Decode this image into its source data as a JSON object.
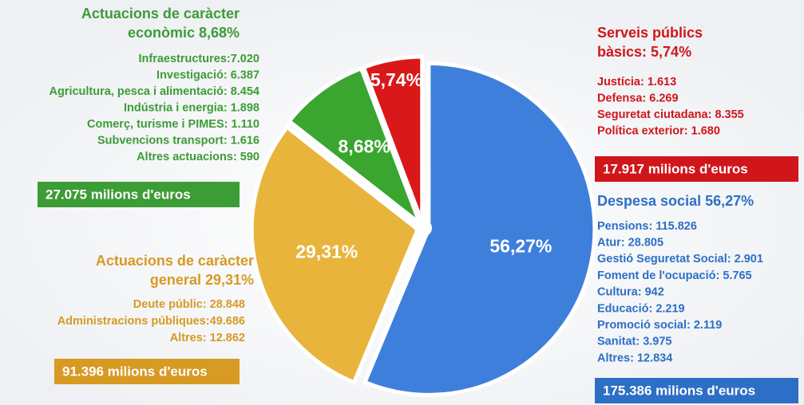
{
  "chart_data": {
    "type": "pie",
    "values": [
      56.27,
      29.31,
      8.68,
      5.74
    ],
    "value_labels": [
      "56,27%",
      "29,31%",
      "8,68%",
      "5,74%"
    ],
    "colors": [
      "#3f7fdc",
      "#e8b43c",
      "#3aa52f",
      "#d9181a"
    ]
  },
  "panels": [
    {
      "title": [
        "Despesa social 56,27%"
      ],
      "color": "#2d6fc6",
      "side": "right",
      "items": [
        "Pensions: 115.826",
        "Atur: 28.805",
        "Gestió Seguretat Social: 2.901",
        "Foment de l'ocupació: 5.765",
        "Cultura: 942",
        "Educació: 2.219",
        "Promoció social: 2.119",
        "Sanitat: 3.975",
        "Altres: 12.834"
      ],
      "total": "175.386 milions d'euros"
    },
    {
      "title": [
        "Actuacions de caràcter",
        "general  29,31%"
      ],
      "color": "#d79a22",
      "side": "left",
      "items": [
        "Deute públic: 28.848",
        "Administracions públiques:49.686",
        "Altres: 12.862"
      ],
      "total": "91.396 milions d'euros"
    },
    {
      "title": [
        "Actuacions de caràcter",
        "econòmic 8,68%"
      ],
      "color": "#3c9c35",
      "side": "left",
      "items": [
        "Infraestructures:7.020",
        "Investigació: 6.387",
        "Agricultura, pesca i alimentació: 8.454",
        "Indústria i energia: 1.898",
        "Comerç, turisme i PIMES: 1.110",
        "Subvencions transport: 1.616",
        "Altres actuacions: 590"
      ],
      "total": "27.075 milions d'euros"
    },
    {
      "title": [
        "Serveis públics",
        "bàsics: 5,74%"
      ],
      "color": "#d0161a",
      "side": "right",
      "items": [
        "Justícia: 1.613",
        "Defensa: 6.269",
        "Seguretat ciutadana: 8.355",
        "Política exterior: 1.680"
      ],
      "total": "17.917 milions d'euros"
    }
  ]
}
